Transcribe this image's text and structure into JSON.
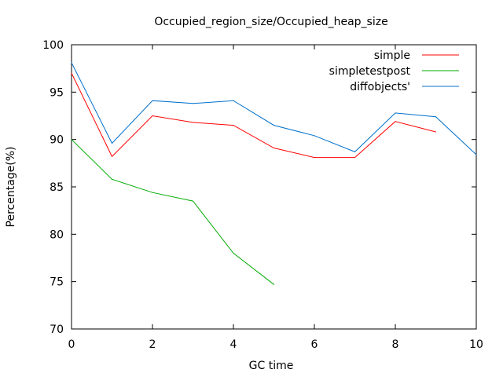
{
  "chart_data": {
    "type": "line",
    "title": "Occupied_region_size/Occupied_heap_size",
    "xlabel": "GC time",
    "ylabel": "Percentage(%)",
    "xlim": [
      0,
      10
    ],
    "ylim": [
      70,
      100
    ],
    "xticks": [
      0,
      2,
      4,
      6,
      8,
      10
    ],
    "yticks": [
      70,
      75,
      80,
      85,
      90,
      95,
      100
    ],
    "grid": false,
    "legend_position": "top-right",
    "series": [
      {
        "name": "simple",
        "color": "#ff0000",
        "x": [
          0,
          1,
          2,
          3,
          4,
          5,
          6,
          7,
          8,
          9
        ],
        "values": [
          97.0,
          88.2,
          92.5,
          91.8,
          91.5,
          89.1,
          88.1,
          88.1,
          91.9,
          90.8
        ]
      },
      {
        "name": "simpletestpost",
        "color": "#00aa00",
        "x": [
          0,
          1,
          2,
          3,
          4,
          5
        ],
        "values": [
          90.0,
          85.8,
          84.4,
          83.5,
          78.0,
          74.7
        ]
      },
      {
        "name": "diffobjects'",
        "color": "#0070cc",
        "x": [
          0,
          1,
          2,
          3,
          4,
          5,
          6,
          7,
          8,
          9,
          10
        ],
        "values": [
          98.1,
          89.6,
          94.1,
          93.8,
          94.1,
          91.5,
          90.4,
          88.7,
          92.8,
          92.4,
          88.4
        ]
      }
    ]
  }
}
